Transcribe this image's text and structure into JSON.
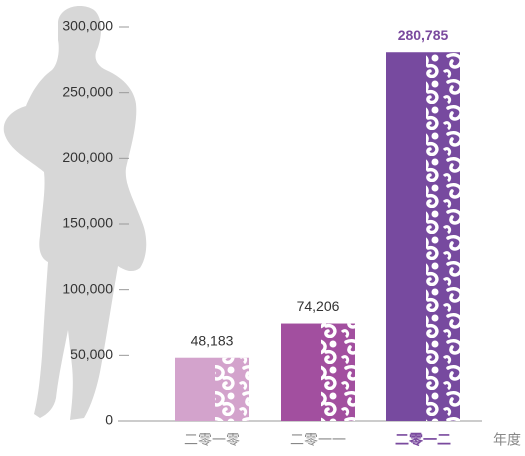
{
  "chart_data": {
    "type": "bar",
    "categories": [
      "二零一零",
      "二零一一",
      "二零一二"
    ],
    "values": [
      48183,
      74206,
      280785
    ],
    "value_labels": [
      "48,183",
      "74,206",
      "280,785"
    ],
    "colors": [
      "#d3a3cc",
      "#a24f9f",
      "#774a9f"
    ],
    "x_label": "年度",
    "ylim": [
      0,
      300000
    ],
    "yticks": [
      0,
      {
        "value": 50000,
        "label": "50,000"
      },
      {
        "value": 100000,
        "label": "100,000"
      },
      {
        "value": 150000,
        "label": "150,000"
      },
      {
        "value": 200000,
        "label": "200,000"
      },
      {
        "value": 250000,
        "label": "250,000"
      },
      {
        "value": 300000,
        "label": "300,000"
      }
    ]
  }
}
